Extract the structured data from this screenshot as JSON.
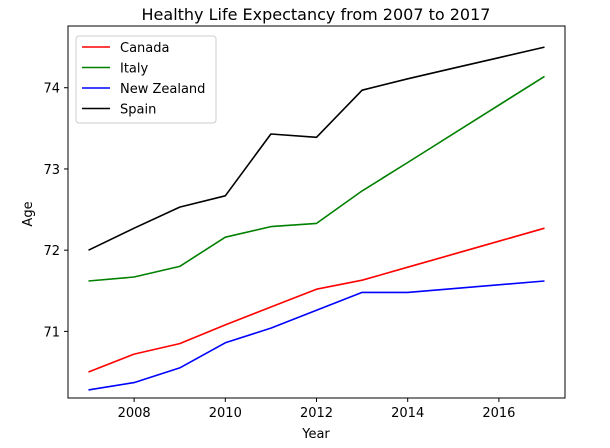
{
  "chart_data": {
    "type": "line",
    "title": "Healthy Life Expectancy from 2007 to 2017",
    "xlabel": "Year",
    "ylabel": "Age",
    "xlim": [
      2006.55,
      2017.45
    ],
    "ylim": [
      70.18,
      74.76
    ],
    "xticks": [
      2008,
      2010,
      2012,
      2014,
      2016
    ],
    "xtick_labels": [
      "2008",
      "2010",
      "2012",
      "2014",
      "2016"
    ],
    "yticks": [
      71,
      72,
      73,
      74
    ],
    "ytick_labels": [
      "71",
      "72",
      "73",
      "74"
    ],
    "grid": false,
    "legend_position": "upper-left",
    "x": [
      2007,
      2008,
      2009,
      2010,
      2011,
      2012,
      2013,
      2014,
      2015,
      2016,
      2017
    ],
    "series": [
      {
        "name": "Canada",
        "color": "#ff0000",
        "x": [
          2007,
          2008,
          2009,
          2010,
          2011,
          2012,
          2013,
          2014,
          2015,
          2016,
          2017
        ],
        "values": [
          70.5,
          70.72,
          70.85,
          71.08,
          71.3,
          71.52,
          71.63,
          71.79,
          71.95,
          72.11,
          72.27
        ]
      },
      {
        "name": "Italy",
        "color": "#008000",
        "x": [
          2007,
          2008,
          2009,
          2010,
          2011,
          2012,
          2013,
          2014,
          2017
        ],
        "values": [
          71.62,
          71.67,
          71.8,
          72.16,
          72.29,
          72.33,
          72.73,
          73.08,
          74.14
        ]
      },
      {
        "name": "New Zealand",
        "color": "#0000ff",
        "x": [
          2007,
          2008,
          2009,
          2010,
          2011,
          2012,
          2013,
          2014,
          2017
        ],
        "values": [
          70.28,
          70.37,
          70.55,
          70.86,
          71.04,
          71.26,
          71.48,
          71.48,
          71.62
        ]
      },
      {
        "name": "Spain",
        "color": "#000000",
        "x": [
          2007,
          2008,
          2009,
          2010,
          2011,
          2012,
          2013,
          2014,
          2015,
          2016,
          2017
        ],
        "values": [
          72.0,
          72.27,
          72.53,
          72.67,
          73.43,
          73.39,
          73.97,
          74.11,
          74.24,
          74.37,
          74.5
        ]
      }
    ]
  }
}
